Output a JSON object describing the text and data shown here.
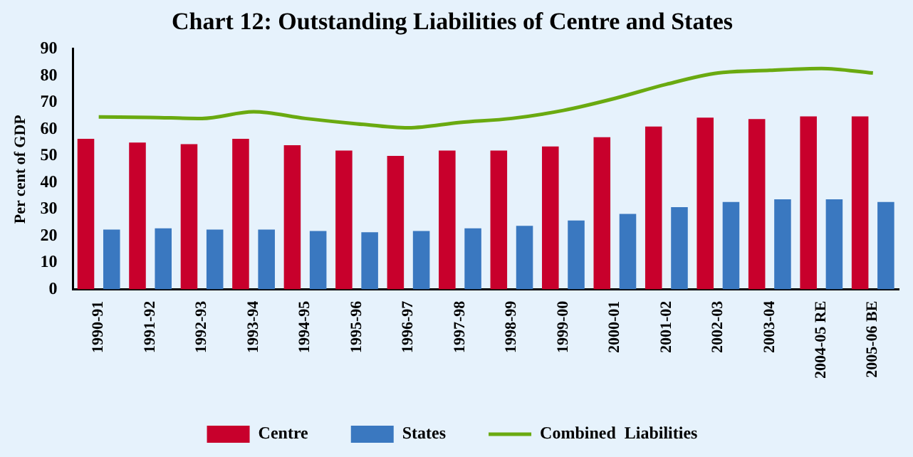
{
  "chart_data": {
    "type": "bar",
    "title": "Chart 12: Outstanding Liabilities of Centre and States",
    "ylabel": "Per cent of GDP",
    "categories": [
      "1990-91",
      "1991-92",
      "1992-93",
      "1993-94",
      "1994-95",
      "1995-96",
      "1996-97",
      "1997-98",
      "1998-99",
      "1999-00",
      "2000-01",
      "2001-02",
      "2002-03",
      "2003-04",
      "2004-05 RE",
      "2005-06 BE"
    ],
    "series": [
      {
        "name": "Centre",
        "color": "#c8002c",
        "values": [
          56.4,
          55,
          54.4,
          56.4,
          54,
          52,
          50,
          52,
          52,
          53.5,
          57,
          61,
          64.3,
          63.8,
          64.8,
          64.8
        ]
      },
      {
        "name": "States",
        "color": "#3a78c0",
        "values": [
          22.4,
          22.9,
          22.4,
          22.4,
          21.9,
          21.4,
          21.9,
          22.9,
          23.8,
          25.8,
          28.3,
          30.8,
          32.7,
          33.7,
          33.7,
          32.7
        ]
      },
      {
        "name": "Combined  Liabilities",
        "type": "line",
        "color": "#6aaa10",
        "values": [
          64.6,
          64.4,
          64,
          66.5,
          64,
          62,
          60.5,
          62.5,
          64,
          67,
          71.5,
          76.8,
          81,
          82,
          82.7,
          81
        ]
      }
    ],
    "ylim": [
      0,
      90
    ],
    "yticks": [
      0,
      10,
      20,
      30,
      40,
      50,
      60,
      70,
      80,
      90
    ],
    "grid": false,
    "legend": "bottom",
    "marker": "none"
  }
}
